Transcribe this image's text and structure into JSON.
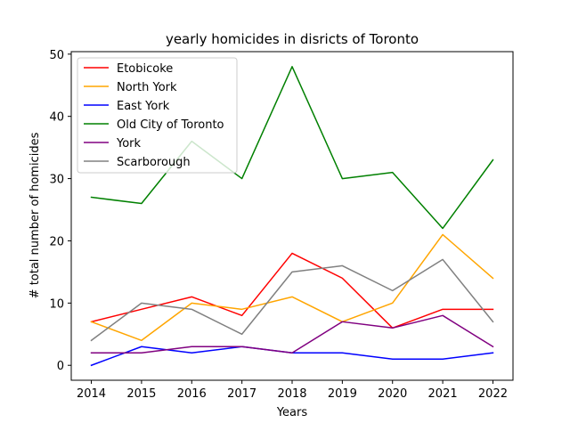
{
  "chart_data": {
    "type": "line",
    "title": "yearly homicides in disricts of Toronto",
    "xlabel": "Years",
    "ylabel": "# total number of homicides",
    "x": [
      2014,
      2015,
      2016,
      2017,
      2018,
      2019,
      2020,
      2021,
      2022
    ],
    "x_ticks": [
      "2014",
      "2015",
      "2016",
      "2017",
      "2018",
      "2019",
      "2020",
      "2021",
      "2022"
    ],
    "y_ticks": [
      "0",
      "10",
      "20",
      "30",
      "40",
      "50"
    ],
    "xlim": [
      2013.6,
      2022.4
    ],
    "ylim": [
      -2.4,
      50.4
    ],
    "grid": false,
    "legend_position": "top-left",
    "series": [
      {
        "name": "Etobicoke",
        "color": "#ff0000",
        "values": [
          7,
          9,
          11,
          8,
          18,
          14,
          6,
          9,
          9
        ]
      },
      {
        "name": "North York",
        "color": "#ffa500",
        "values": [
          7,
          4,
          10,
          9,
          11,
          7,
          10,
          21,
          14
        ]
      },
      {
        "name": "East York",
        "color": "#0000ff",
        "values": [
          0,
          3,
          2,
          3,
          2,
          2,
          1,
          1,
          2
        ]
      },
      {
        "name": "Old City of Toronto",
        "color": "#008000",
        "values": [
          27,
          26,
          36,
          30,
          48,
          30,
          31,
          22,
          33
        ]
      },
      {
        "name": "York",
        "color": "#800080",
        "values": [
          2,
          2,
          3,
          3,
          2,
          7,
          6,
          8,
          3
        ]
      },
      {
        "name": "Scarborough",
        "color": "#808080",
        "values": [
          4,
          10,
          9,
          5,
          15,
          16,
          12,
          17,
          7
        ]
      }
    ]
  }
}
